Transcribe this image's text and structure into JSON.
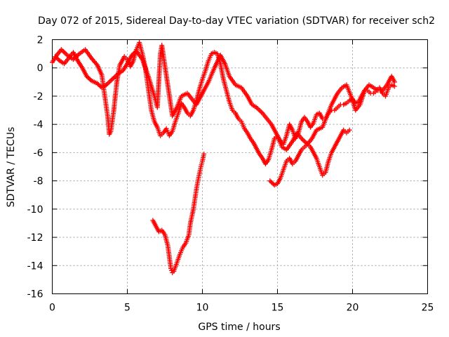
{
  "chart_data": {
    "type": "scatter",
    "title": "Day 072 of 2015, Sidereal Day-to-day VTEC variation (SDTVAR) for receiver sch2",
    "xlabel": "GPS time / hours",
    "ylabel": "SDTVAR / TECUs",
    "xlim": [
      0,
      25
    ],
    "ylim": [
      -16,
      2
    ],
    "xticks": [
      0,
      5,
      10,
      15,
      20,
      25
    ],
    "yticks": [
      2,
      0,
      -2,
      -4,
      -6,
      -8,
      -10,
      -12,
      -14,
      -16
    ],
    "grid": true,
    "marker": "+",
    "color": "#ff0000",
    "series": [
      {
        "values": [
          [
            0.0,
            0.4
          ],
          [
            0.3,
            0.9
          ],
          [
            0.6,
            1.3
          ],
          [
            1.0,
            0.9
          ],
          [
            1.4,
            0.6
          ],
          [
            1.8,
            1.0
          ],
          [
            2.2,
            1.3
          ],
          [
            2.6,
            0.7
          ],
          [
            3.0,
            0.2
          ],
          [
            3.3,
            -0.5
          ],
          [
            3.5,
            -2.0
          ],
          [
            3.7,
            -3.5
          ],
          [
            3.8,
            -4.7
          ],
          [
            3.9,
            -4.5
          ],
          [
            4.1,
            -3.0
          ],
          [
            4.3,
            -1.0
          ],
          [
            4.5,
            0.2
          ],
          [
            4.8,
            0.8
          ],
          [
            5.0,
            0.6
          ],
          [
            5.2,
            0.1
          ],
          [
            5.4,
            0.5
          ],
          [
            5.6,
            1.3
          ],
          [
            5.8,
            1.8
          ],
          [
            6.0,
            1.0
          ],
          [
            6.2,
            0.0
          ],
          [
            6.4,
            -1.5
          ],
          [
            6.6,
            -3.0
          ],
          [
            6.8,
            -3.8
          ],
          [
            7.0,
            -4.2
          ],
          [
            7.2,
            -4.8
          ],
          [
            7.4,
            -4.6
          ],
          [
            7.6,
            -4.3
          ],
          [
            7.8,
            -4.8
          ],
          [
            8.0,
            -4.5
          ],
          [
            8.2,
            -3.8
          ],
          [
            8.4,
            -3.2
          ],
          [
            8.6,
            -2.5
          ],
          [
            8.8,
            -2.8
          ],
          [
            9.0,
            -3.2
          ],
          [
            9.2,
            -3.4
          ],
          [
            9.4,
            -3.0
          ],
          [
            9.6,
            -2.3
          ],
          [
            9.8,
            -1.5
          ],
          [
            10.0,
            -0.8
          ],
          [
            10.2,
            -0.2
          ],
          [
            10.4,
            0.5
          ],
          [
            10.6,
            1.0
          ],
          [
            10.8,
            1.1
          ],
          [
            11.0,
            1.0
          ],
          [
            11.2,
            0.3
          ],
          [
            11.4,
            -0.8
          ],
          [
            11.6,
            -1.6
          ],
          [
            11.8,
            -2.4
          ],
          [
            12.0,
            -3.0
          ],
          [
            12.2,
            -3.2
          ],
          [
            12.4,
            -3.6
          ],
          [
            12.6,
            -3.8
          ],
          [
            12.8,
            -4.3
          ],
          [
            13.0,
            -4.6
          ],
          [
            13.2,
            -5.0
          ],
          [
            13.4,
            -5.3
          ],
          [
            13.6,
            -5.7
          ],
          [
            13.8,
            -6.1
          ],
          [
            14.0,
            -6.4
          ],
          [
            14.2,
            -6.8
          ],
          [
            14.4,
            -6.5
          ],
          [
            14.6,
            -5.8
          ],
          [
            14.8,
            -5.0
          ],
          [
            15.0,
            -4.8
          ],
          [
            15.2,
            -5.2
          ],
          [
            15.4,
            -5.4
          ],
          [
            15.6,
            -4.8
          ],
          [
            15.8,
            -4.0
          ],
          [
            16.0,
            -4.4
          ],
          [
            16.2,
            -5.0
          ],
          [
            16.4,
            -4.6
          ],
          [
            16.6,
            -3.8
          ],
          [
            16.8,
            -3.5
          ],
          [
            17.0,
            -3.8
          ],
          [
            17.2,
            -4.2
          ],
          [
            17.4,
            -3.9
          ],
          [
            17.6,
            -3.3
          ],
          [
            17.8,
            -3.2
          ],
          [
            18.0,
            -3.6
          ],
          [
            18.2,
            -3.6
          ],
          [
            18.4,
            -3.2
          ],
          [
            18.6,
            -3.0
          ],
          [
            18.8,
            -3.0
          ],
          [
            19.0,
            -2.8
          ],
          [
            19.2,
            -2.6
          ],
          [
            19.4,
            -2.6
          ],
          [
            19.6,
            -2.5
          ],
          [
            19.8,
            -2.3
          ],
          [
            20.0,
            -2.2
          ],
          [
            20.2,
            -2.5
          ],
          [
            20.4,
            -2.4
          ],
          [
            20.6,
            -2.0
          ],
          [
            20.8,
            -1.6
          ],
          [
            21.0,
            -1.6
          ],
          [
            21.2,
            -1.8
          ],
          [
            21.4,
            -1.8
          ],
          [
            21.6,
            -1.6
          ],
          [
            21.8,
            -1.4
          ],
          [
            22.0,
            -1.8
          ],
          [
            22.2,
            -2.0
          ],
          [
            22.4,
            -1.4
          ],
          [
            22.6,
            -1.2
          ],
          [
            22.8,
            -1.3
          ]
        ]
      },
      {
        "values": [
          [
            0.2,
            0.8
          ],
          [
            0.5,
            0.5
          ],
          [
            0.8,
            0.3
          ],
          [
            1.1,
            0.7
          ],
          [
            1.4,
            1.1
          ],
          [
            1.7,
            0.5
          ],
          [
            2.0,
            0.0
          ],
          [
            2.3,
            -0.6
          ],
          [
            2.6,
            -0.9
          ],
          [
            3.0,
            -1.1
          ],
          [
            3.3,
            -1.4
          ],
          [
            3.6,
            -1.2
          ],
          [
            4.0,
            -0.8
          ],
          [
            4.4,
            -0.4
          ],
          [
            4.7,
            -0.2
          ],
          [
            5.0,
            0.3
          ],
          [
            5.3,
            0.9
          ],
          [
            5.6,
            1.2
          ],
          [
            6.0,
            0.6
          ],
          [
            6.4,
            -0.6
          ],
          [
            6.8,
            -2.0
          ],
          [
            7.0,
            -2.8
          ],
          [
            7.2,
            1.0
          ],
          [
            7.3,
            1.6
          ],
          [
            8.0,
            -3.4
          ],
          [
            8.3,
            -2.8
          ],
          [
            8.6,
            -2.0
          ],
          [
            9.0,
            -1.8
          ],
          [
            9.3,
            -2.2
          ],
          [
            9.6,
            -2.6
          ],
          [
            10.0,
            -1.8
          ],
          [
            10.4,
            -1.0
          ],
          [
            10.8,
            0.0
          ],
          [
            11.2,
            0.9
          ],
          [
            11.5,
            0.3
          ],
          [
            11.8,
            -0.6
          ],
          [
            12.2,
            -1.2
          ],
          [
            12.6,
            -1.4
          ],
          [
            13.0,
            -2.0
          ],
          [
            13.3,
            -2.6
          ],
          [
            13.6,
            -2.8
          ],
          [
            14.0,
            -3.2
          ],
          [
            14.3,
            -3.6
          ],
          [
            14.6,
            -4.0
          ],
          [
            15.0,
            -4.8
          ],
          [
            15.3,
            -5.6
          ],
          [
            15.6,
            -5.8
          ],
          [
            16.0,
            -5.2
          ],
          [
            16.3,
            -4.6
          ],
          [
            16.6,
            -5.0
          ],
          [
            17.0,
            -5.4
          ],
          [
            17.3,
            -5.0
          ],
          [
            17.6,
            -4.4
          ],
          [
            18.0,
            -4.2
          ],
          [
            18.3,
            -3.4
          ],
          [
            18.6,
            -2.6
          ],
          [
            19.0,
            -1.8
          ],
          [
            19.3,
            -1.4
          ],
          [
            19.6,
            -1.2
          ],
          [
            19.9,
            -2.0
          ],
          [
            20.2,
            -3.0
          ],
          [
            20.5,
            -2.6
          ],
          [
            20.8,
            -1.6
          ],
          [
            21.1,
            -1.2
          ],
          [
            21.4,
            -1.4
          ],
          [
            21.7,
            -1.6
          ],
          [
            22.0,
            -1.6
          ],
          [
            22.3,
            -1.2
          ],
          [
            22.6,
            -0.6
          ],
          [
            22.8,
            -1.0
          ]
        ]
      },
      {
        "values": [
          [
            14.5,
            -8.0
          ],
          [
            14.8,
            -8.3
          ],
          [
            15.0,
            -8.2
          ],
          [
            15.2,
            -7.8
          ],
          [
            15.4,
            -7.2
          ],
          [
            15.6,
            -6.6
          ],
          [
            15.8,
            -6.4
          ],
          [
            16.0,
            -6.8
          ],
          [
            16.2,
            -6.6
          ],
          [
            16.4,
            -6.2
          ],
          [
            16.6,
            -5.8
          ],
          [
            16.8,
            -5.6
          ],
          [
            17.0,
            -5.4
          ],
          [
            17.2,
            -5.6
          ],
          [
            17.4,
            -6.0
          ],
          [
            17.6,
            -6.4
          ],
          [
            17.8,
            -7.0
          ],
          [
            18.0,
            -7.6
          ],
          [
            18.2,
            -7.4
          ],
          [
            18.4,
            -6.6
          ],
          [
            18.6,
            -6.0
          ],
          [
            18.8,
            -5.6
          ],
          [
            19.0,
            -5.2
          ],
          [
            19.2,
            -4.8
          ],
          [
            19.4,
            -4.4
          ],
          [
            19.6,
            -4.6
          ],
          [
            19.8,
            -4.4
          ]
        ]
      },
      {
        "values": [
          [
            6.7,
            -10.8
          ],
          [
            6.9,
            -11.2
          ],
          [
            7.1,
            -11.6
          ],
          [
            7.3,
            -11.5
          ],
          [
            7.5,
            -11.8
          ],
          [
            7.7,
            -12.6
          ],
          [
            7.8,
            -13.4
          ],
          [
            7.9,
            -14.2
          ],
          [
            8.0,
            -14.5
          ],
          [
            8.1,
            -14.4
          ],
          [
            8.3,
            -13.8
          ],
          [
            8.5,
            -13.2
          ],
          [
            8.7,
            -12.7
          ],
          [
            8.9,
            -12.4
          ],
          [
            9.1,
            -11.8
          ],
          [
            9.2,
            -11.0
          ],
          [
            9.4,
            -10.0
          ],
          [
            9.6,
            -8.6
          ],
          [
            9.7,
            -8.0
          ],
          [
            9.8,
            -7.5
          ],
          [
            9.9,
            -7.0
          ],
          [
            10.0,
            -6.6
          ],
          [
            10.1,
            -6.1
          ]
        ]
      }
    ]
  }
}
